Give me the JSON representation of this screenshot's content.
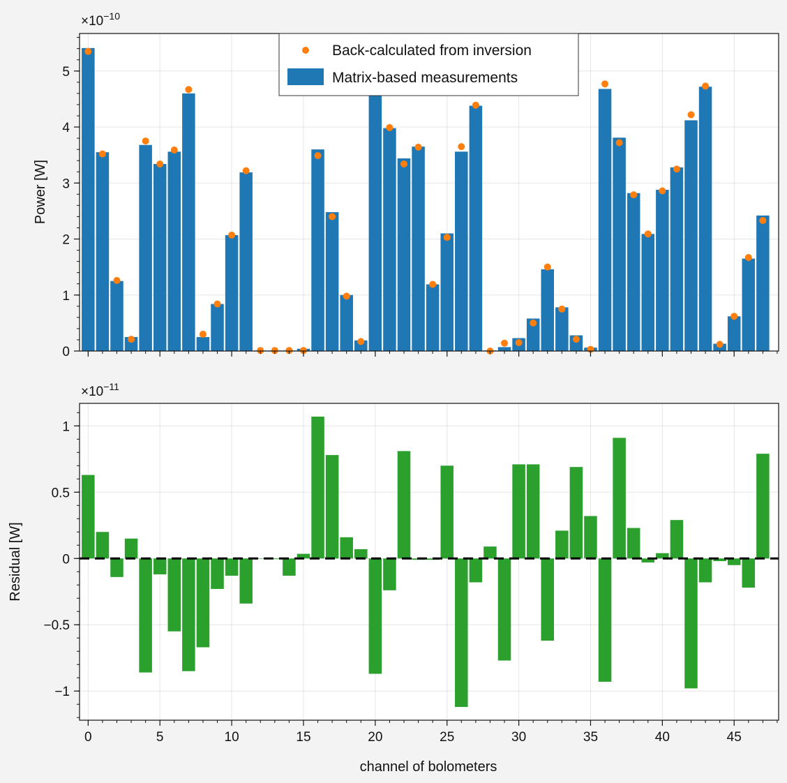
{
  "chart_data": [
    {
      "type": "bar",
      "id": "power",
      "ylabel": "Power [W]",
      "multiplier": "×10",
      "exponent": "−10",
      "scale": 1e-10,
      "ylim": [
        0,
        5.67
      ],
      "yticks": [
        0,
        1,
        2,
        3,
        4,
        5
      ],
      "ytick_labels": [
        "0",
        "1",
        "2",
        "3",
        "4",
        "5"
      ],
      "grid": true,
      "legend_position": "top-center",
      "x": [
        0,
        1,
        2,
        3,
        4,
        5,
        6,
        7,
        8,
        9,
        10,
        11,
        12,
        13,
        14,
        15,
        16,
        17,
        18,
        19,
        20,
        21,
        22,
        23,
        24,
        25,
        26,
        27,
        28,
        29,
        30,
        31,
        32,
        33,
        34,
        35,
        36,
        37,
        38,
        39,
        40,
        41,
        42,
        43,
        44,
        45,
        46,
        47
      ],
      "series": [
        {
          "name": "Matrix-based measurements",
          "kind": "bar",
          "color": "#1f77b4",
          "values": [
            5.41,
            3.55,
            1.25,
            0.25,
            3.68,
            3.34,
            3.56,
            4.6,
            0.25,
            0.84,
            2.07,
            3.19,
            0.01,
            0.01,
            0.01,
            0.04,
            3.6,
            2.48,
            1.0,
            0.19,
            4.67,
            3.98,
            3.44,
            3.65,
            1.19,
            2.1,
            3.56,
            4.38,
            0.01,
            0.07,
            0.23,
            0.58,
            1.46,
            0.78,
            0.28,
            0.06,
            4.68,
            3.81,
            2.82,
            2.09,
            2.88,
            3.28,
            4.12,
            4.72,
            0.13,
            0.62,
            1.65,
            2.42
          ]
        },
        {
          "name": "Back-calculated from inversion",
          "kind": "points",
          "color": "#ff7f0e",
          "values": [
            5.35,
            3.52,
            1.26,
            0.21,
            3.75,
            3.34,
            3.59,
            4.67,
            0.3,
            0.84,
            2.07,
            3.22,
            0.01,
            0.01,
            0.01,
            0.01,
            3.49,
            2.4,
            0.98,
            0.17,
            4.76,
            3.99,
            3.34,
            3.64,
            1.19,
            2.03,
            3.65,
            4.39,
            0.0,
            0.14,
            0.15,
            0.5,
            1.5,
            0.75,
            0.21,
            0.03,
            4.77,
            3.72,
            2.79,
            2.09,
            2.86,
            3.25,
            4.22,
            4.73,
            0.12,
            0.62,
            1.67,
            2.33
          ]
        }
      ]
    },
    {
      "type": "bar",
      "id": "residual",
      "ylabel": "Residual [W]",
      "xlabel": "channel of bolometers",
      "multiplier": "×10",
      "exponent": "−11",
      "scale": 1e-11,
      "ylim": [
        -1.22,
        1.17
      ],
      "yticks": [
        -1,
        -0.5,
        0,
        0.5,
        1
      ],
      "ytick_labels": [
        "−1",
        "−0.5",
        "0",
        "0.5",
        "1"
      ],
      "xlim": [
        -0.6,
        48.1
      ],
      "xticks": [
        0,
        5,
        10,
        15,
        20,
        25,
        30,
        35,
        40,
        45
      ],
      "xtick_labels": [
        "0",
        "5",
        "10",
        "15",
        "20",
        "25",
        "30",
        "35",
        "40",
        "45"
      ],
      "grid": true,
      "zero_line": "dashed",
      "x": [
        0,
        1,
        2,
        3,
        4,
        5,
        6,
        7,
        8,
        9,
        10,
        11,
        12,
        13,
        14,
        15,
        16,
        17,
        18,
        19,
        20,
        21,
        22,
        23,
        24,
        25,
        26,
        27,
        28,
        29,
        30,
        31,
        32,
        33,
        34,
        35,
        36,
        37,
        38,
        39,
        40,
        41,
        42,
        43,
        44,
        45,
        46,
        47
      ],
      "series": [
        {
          "kind": "bar",
          "color": "#2ca02c",
          "values": [
            0.63,
            0.2,
            -0.14,
            0.15,
            -0.86,
            -0.12,
            -0.55,
            -0.85,
            -0.67,
            -0.23,
            -0.13,
            -0.34,
            0.0,
            -0.005,
            -0.13,
            0.035,
            1.07,
            0.78,
            0.16,
            0.07,
            -0.87,
            -0.24,
            0.81,
            -0.01,
            -0.01,
            0.7,
            -1.12,
            -0.18,
            0.09,
            -0.77,
            0.71,
            0.71,
            -0.62,
            0.21,
            0.69,
            0.32,
            -0.93,
            0.91,
            0.23,
            -0.03,
            0.04,
            0.29,
            -0.98,
            -0.18,
            -0.02,
            -0.05,
            -0.22,
            0.79
          ]
        }
      ]
    }
  ]
}
